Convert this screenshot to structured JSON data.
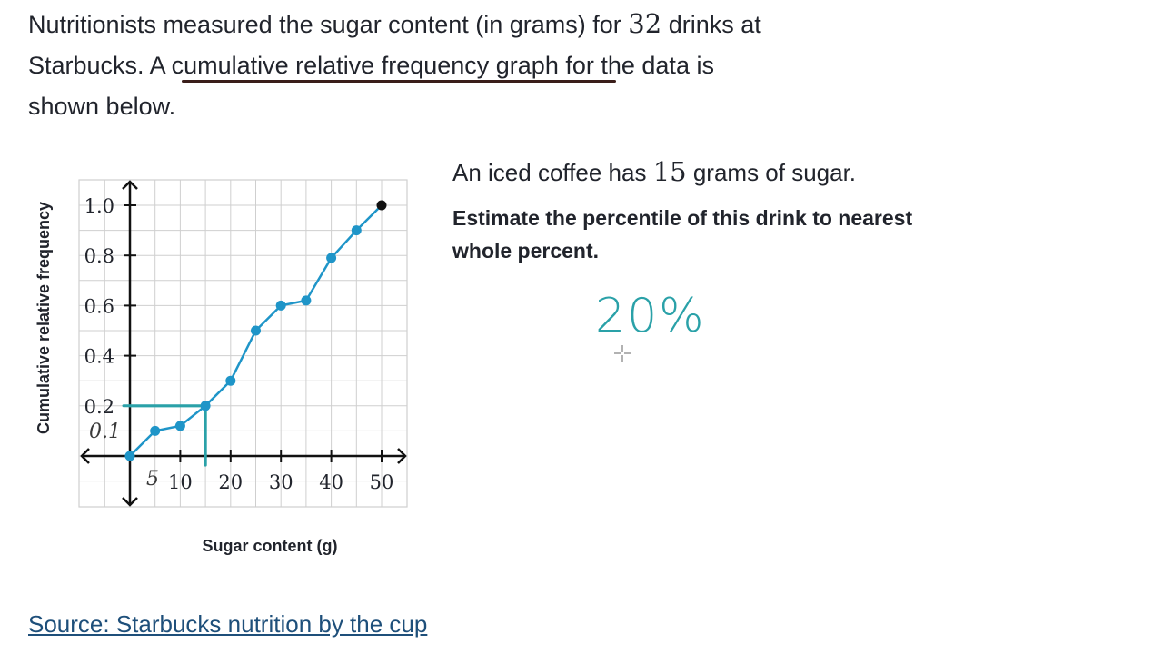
{
  "problem": {
    "line1_a": "Nutritionists measured the sugar content (in grams) for",
    "count": "32",
    "line1_b": "drinks at",
    "line2_a": "Starbucks. A",
    "highlight": "cumulative relative frequency graph",
    "line2_b": "for the data is",
    "line3": "shown below."
  },
  "question": {
    "text_a": "An iced coffee has",
    "value": "15",
    "text_b": "grams of sugar.",
    "prompt_line1": "Estimate the percentile of this drink to nearest",
    "prompt_line2": "whole percent."
  },
  "handwritten": {
    "answer": "20%",
    "y_annotation": "0.1",
    "x_annotation": "5"
  },
  "source_link": "Source: Starbucks nutrition by the cup",
  "colors": {
    "series": "#1f95c8",
    "annotation": "#2aa1a8",
    "grid": "#cfcfcf",
    "link": "#1e4f7a"
  },
  "chart_data": {
    "type": "line",
    "xlabel": "Sugar content (g)",
    "ylabel": "Cumulative relative frequency",
    "xlim": [
      -10,
      55
    ],
    "ylim": [
      -0.2,
      1.1
    ],
    "x_ticks": [
      10,
      20,
      30,
      40,
      50
    ],
    "y_ticks": [
      0.2,
      0.4,
      0.6,
      0.8,
      1.0
    ],
    "x_tick_labels": [
      "10",
      "20",
      "30",
      "40",
      "50"
    ],
    "y_tick_labels": [
      "0.2",
      "0.4",
      "0.6",
      "0.8",
      "1.0"
    ],
    "grid": true,
    "points": [
      {
        "x": 0,
        "y": 0
      },
      {
        "x": 5,
        "y": 0.1
      },
      {
        "x": 10,
        "y": 0.12
      },
      {
        "x": 15,
        "y": 0.2
      },
      {
        "x": 20,
        "y": 0.3
      },
      {
        "x": 25,
        "y": 0.5
      },
      {
        "x": 30,
        "y": 0.6
      },
      {
        "x": 35,
        "y": 0.62
      },
      {
        "x": 40,
        "y": 0.79
      },
      {
        "x": 45,
        "y": 0.9
      },
      {
        "x": 50,
        "y": 1.0
      }
    ],
    "annotation_lines": [
      {
        "x1": 0,
        "y1": 0.2,
        "x2": 15,
        "y2": 0.2
      },
      {
        "x1": 15,
        "y1": 0,
        "x2": 15,
        "y2": 0.2
      }
    ]
  }
}
